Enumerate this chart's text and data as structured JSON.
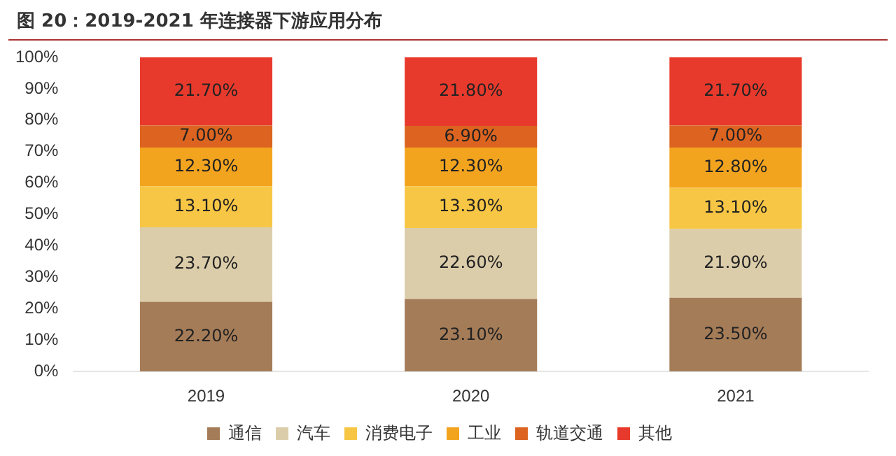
{
  "chart_data": {
    "type": "bar",
    "stacked": true,
    "title": "图 20：2019-2021 年连接器下游应用分布",
    "categories": [
      "2019",
      "2020",
      "2021"
    ],
    "series": [
      {
        "name": "通信",
        "color": "#a57c58",
        "values": [
          22.2,
          23.1,
          23.5
        ],
        "value_labels": [
          "22.20%",
          "23.10%",
          "23.50%"
        ]
      },
      {
        "name": "汽车",
        "color": "#dccdaa",
        "values": [
          23.7,
          22.6,
          21.9
        ],
        "value_labels": [
          "23.70%",
          "22.60%",
          "21.90%"
        ]
      },
      {
        "name": "消费电子",
        "color": "#f7c644",
        "values": [
          13.1,
          13.3,
          13.1
        ],
        "value_labels": [
          "13.10%",
          "13.30%",
          "13.10%"
        ]
      },
      {
        "name": "工业",
        "color": "#f3a41f",
        "values": [
          12.3,
          12.3,
          12.8
        ],
        "value_labels": [
          "12.30%",
          "12.30%",
          "12.80%"
        ]
      },
      {
        "name": "轨道交通",
        "color": "#dc6420",
        "values": [
          7.0,
          6.9,
          7.0
        ],
        "value_labels": [
          "7.00%",
          "6.90%",
          "7.00%"
        ]
      },
      {
        "name": "其他",
        "color": "#e83a2c",
        "values": [
          21.7,
          21.8,
          21.7
        ],
        "value_labels": [
          "21.70%",
          "21.80%",
          "21.70%"
        ]
      }
    ],
    "ylim": [
      0,
      100
    ],
    "yticks": [
      {
        "value": 0,
        "label": "0%"
      },
      {
        "value": 10,
        "label": "10%"
      },
      {
        "value": 20,
        "label": "20%"
      },
      {
        "value": 30,
        "label": "30%"
      },
      {
        "value": 40,
        "label": "40%"
      },
      {
        "value": 50,
        "label": "50%"
      },
      {
        "value": 60,
        "label": "60%"
      },
      {
        "value": 70,
        "label": "70%"
      },
      {
        "value": 80,
        "label": "80%"
      },
      {
        "value": 90,
        "label": "90%"
      },
      {
        "value": 100,
        "label": "100%"
      }
    ],
    "grid": false,
    "legend": "bottom"
  }
}
